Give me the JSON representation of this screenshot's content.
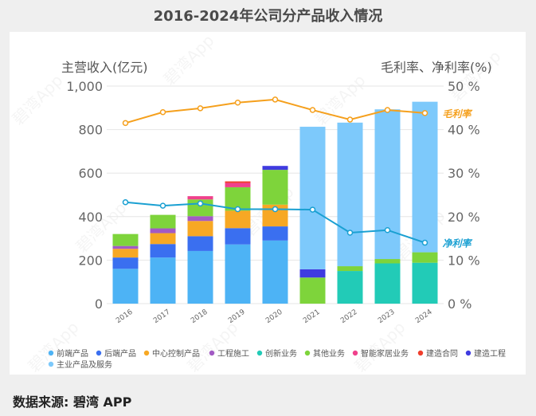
{
  "title": "2016-2024年公司分产品收入情况",
  "source": "数据来源: 碧湾 APP",
  "watermark": "碧湾App",
  "chart_data": {
    "type": "bar",
    "subtype": "stacked bar + line (dual axis)",
    "categories": [
      "2016",
      "2017",
      "2018",
      "2019",
      "2020",
      "2021",
      "2022",
      "2023",
      "2024"
    ],
    "left_axis": {
      "label": "主营收入(亿元)",
      "ylim": [
        0,
        1000
      ],
      "ticks": [
        "0",
        "200",
        "400",
        "600",
        "800",
        "1,000"
      ],
      "tick_values": [
        0,
        200,
        400,
        600,
        800,
        1000
      ]
    },
    "right_axis": {
      "label": "毛利率、净利率(%)",
      "ylim": [
        0,
        50
      ],
      "ticks": [
        "0 %",
        "10 %",
        "20 %",
        "30 %",
        "40 %",
        "50 %"
      ],
      "tick_values": [
        0,
        10,
        20,
        30,
        40,
        50
      ]
    },
    "grid": true,
    "legend_position": "bottom",
    "series": [
      {
        "name": "前端产品",
        "color": "#4db3f5",
        "values": [
          160,
          212,
          242,
          272,
          290,
          0,
          0,
          0,
          0
        ]
      },
      {
        "name": "后端产品",
        "color": "#3a6ff0",
        "values": [
          52,
          62,
          68,
          75,
          65,
          0,
          0,
          0,
          0
        ]
      },
      {
        "name": "中心控制产品",
        "color": "#f7a824",
        "values": [
          40,
          50,
          70,
          80,
          100,
          0,
          0,
          0,
          0
        ]
      },
      {
        "name": "工程施工",
        "color": "#a25ac4",
        "values": [
          13,
          22,
          22,
          0,
          0,
          0,
          0,
          0,
          0
        ]
      },
      {
        "name": "创新业务",
        "color": "#22cbb7",
        "values": [
          0,
          0,
          0,
          0,
          0,
          0,
          150,
          185,
          188
        ]
      },
      {
        "name": "其他业务",
        "color": "#7ed43b",
        "values": [
          55,
          62,
          77,
          108,
          160,
          120,
          22,
          20,
          48
        ]
      },
      {
        "name": "智能家居业务",
        "color": "#f0418c",
        "values": [
          0,
          0,
          15,
          20,
          0,
          0,
          0,
          0,
          0
        ]
      },
      {
        "name": "建造合同",
        "color": "#f03e2c",
        "values": [
          0,
          0,
          0,
          7,
          0,
          0,
          0,
          0,
          0
        ]
      },
      {
        "name": "建造工程",
        "color": "#3f3be0",
        "values": [
          0,
          0,
          0,
          0,
          18,
          38,
          0,
          0,
          0
        ]
      },
      {
        "name": "主业产品及服务",
        "color": "#7dc9fb",
        "values": [
          0,
          0,
          0,
          0,
          0,
          655,
          660,
          688,
          692
        ]
      }
    ],
    "lines": [
      {
        "name": "毛利率",
        "color": "#f5a01d",
        "values": [
          41.5,
          44,
          44.9,
          46.2,
          46.9,
          44.5,
          42.3,
          44.5,
          43.8
        ]
      },
      {
        "name": "净利率",
        "color": "#1aa0d2",
        "values": [
          23.3,
          22.5,
          23,
          21.7,
          21.7,
          21.6,
          16.3,
          16.9,
          14
        ]
      }
    ]
  }
}
